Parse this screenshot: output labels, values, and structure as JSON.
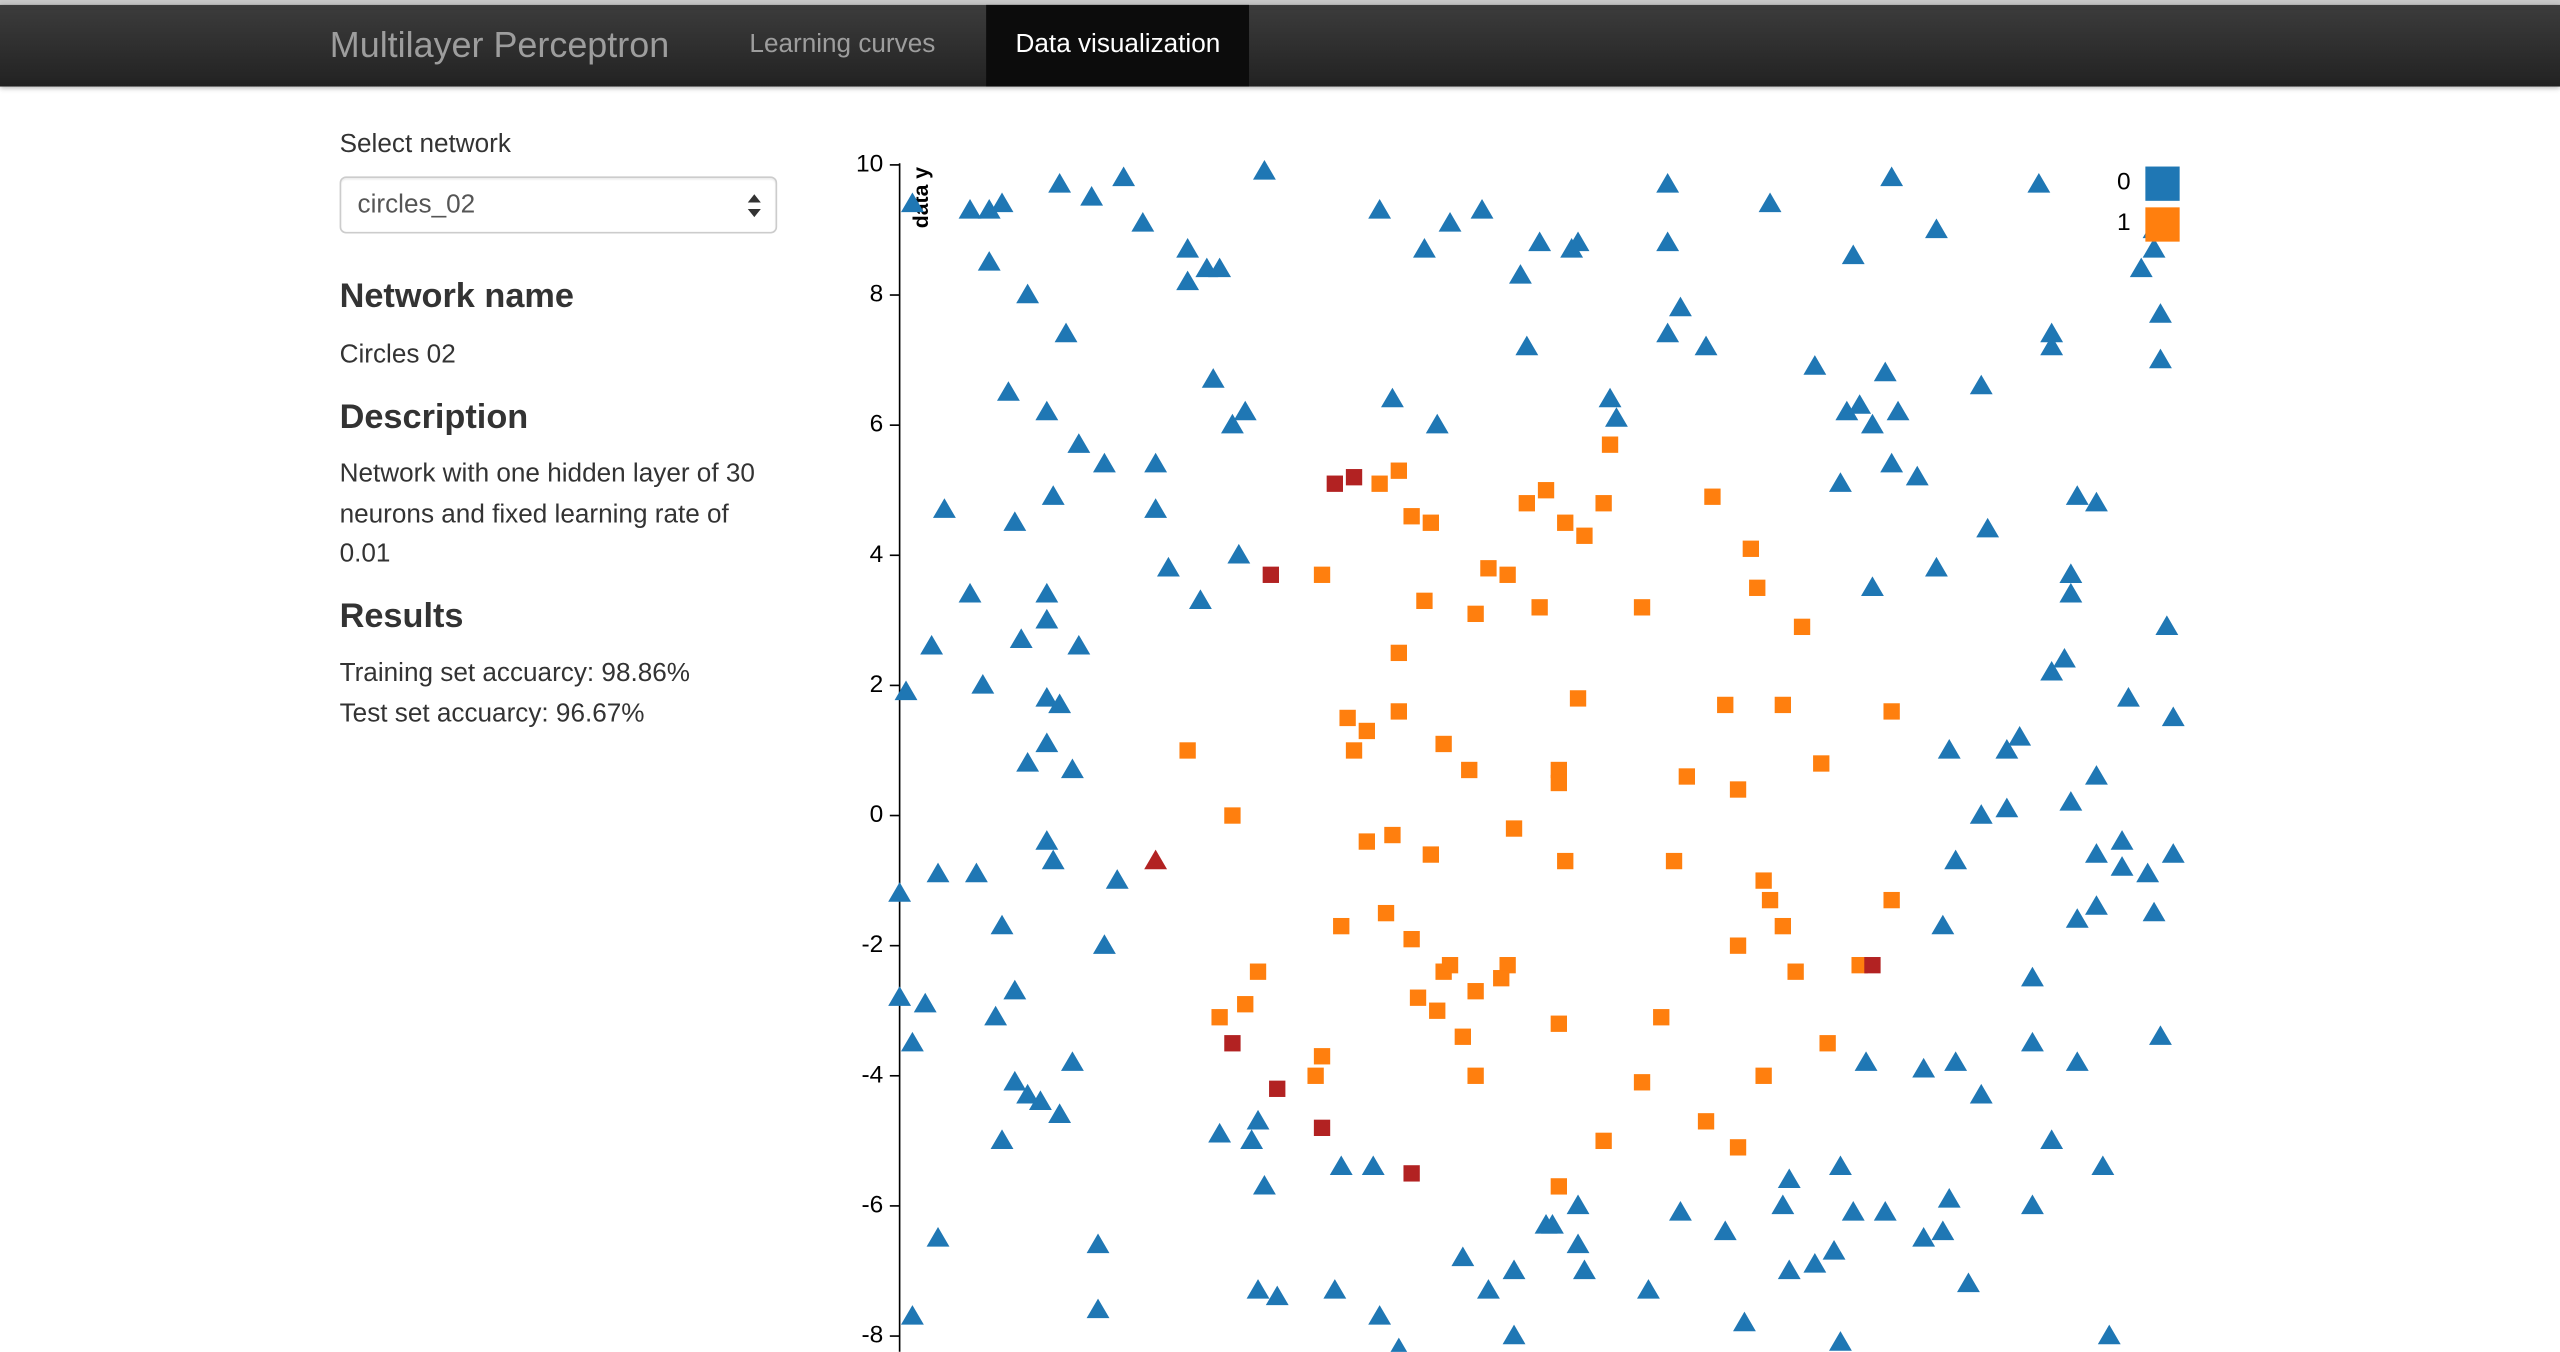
{
  "nav": {
    "brand": "Multilayer Perceptron",
    "links": [
      "Learning curves",
      "Data visualization"
    ]
  },
  "sidebar": {
    "select_label": "Select network",
    "select_value": "circles_02",
    "network_heading": "Network name",
    "network_name": "Circles 02",
    "description_heading": "Description",
    "description": "Network with one hidden layer of 30 neurons and fixed learning rate of 0.01",
    "results_heading": "Results",
    "results": [
      "Training set accuarcy: 98.86%",
      "Test set accuarcy: 96.67%"
    ]
  },
  "chart_data": {
    "type": "scatter",
    "y_label": "data y",
    "xlim": [
      -10,
      10
    ],
    "ylim": [
      -10,
      10
    ],
    "yticks": [
      10,
      8,
      6,
      4,
      2,
      0,
      -2,
      -4,
      -6,
      -8
    ],
    "legend": "top-right",
    "series": [
      {
        "name": "0",
        "color": "#1f77b4",
        "marker": "triangle",
        "x": [
          -9.8,
          -8.9,
          -8.6,
          -8.4,
          -7.5,
          -7.0,
          -6.5,
          -6.2,
          -4.3,
          -2.5,
          -1.4,
          -0.9,
          -1.8,
          2.0,
          3.6,
          5.5,
          6.2,
          7.8,
          4.9,
          2.0,
          -8.6,
          -8.0,
          -5.5,
          -5.5,
          -5.2,
          -5.0,
          0.0,
          0.5,
          0.6,
          -0.3,
          2.2,
          2.0,
          2.6,
          -0.2,
          -7.4,
          4.3,
          5.4,
          6.9,
          8.0,
          8.0,
          9.7,
          9.7,
          9.4,
          9.6,
          9.6,
          -8.3,
          -7.7,
          -5.1,
          -4.6,
          -4.8,
          -2.3,
          -1.6,
          1.1,
          1.2,
          4.8,
          5.0,
          5.2,
          5.6,
          -7.2,
          -6.8,
          -6.0,
          5.5,
          5.9,
          4.7,
          8.4,
          8.7,
          -9.3,
          -8.2,
          -7.6,
          -6.0,
          7.0,
          -5.8,
          -5.3,
          -4.7,
          6.2,
          5.2,
          8.3,
          8.3,
          9.8,
          -8.9,
          -7.7,
          -7.7,
          -8.1,
          -9.5,
          -7.2,
          -8.7,
          -9.9,
          -7.7,
          -7.5,
          8.2,
          8.0,
          9.2,
          9.9,
          7.5,
          7.3,
          6.4,
          -7.7,
          -8.0,
          -7.3,
          8.7,
          7.3,
          6.9,
          8.3,
          -7.7,
          -7.6,
          6.5,
          8.7,
          9.1,
          9.1,
          9.5,
          9.9,
          -9.4,
          -8.8,
          -10.0,
          -6.6,
          -8.4,
          -6.8,
          6.3,
          8.7,
          8.4,
          9.6,
          -10.0,
          -9.6,
          -8.2,
          -8.5,
          -9.8,
          7.7,
          9.7,
          7.7,
          5.1,
          6.0,
          6.5,
          8.4,
          6.9,
          -7.3,
          -8.2,
          -8.0,
          -7.8,
          -7.5,
          -8.4,
          -5.0,
          -4.5,
          -4.4,
          -4.3,
          -3.1,
          -2.6,
          -9.4,
          -6.9,
          -6.9,
          -9.8,
          -4.4,
          -4.1,
          -3.2,
          -2.5,
          -2.2,
          -1.2,
          -0.8,
          -0.4,
          -0.4,
          0.1,
          0.2,
          0.6,
          0.6,
          0.7,
          1.7,
          2.2,
          2.9,
          3.2,
          3.9,
          3.8,
          3.9,
          4.3,
          4.6,
          4.7,
          4.9,
          5.4,
          4.7,
          6.0,
          6.3,
          6.4,
          6.7,
          7.7,
          8.0,
          8.8,
          8.9
        ],
        "values": [
          9.4,
          9.3,
          9.3,
          9.4,
          9.7,
          9.5,
          9.8,
          9.1,
          9.9,
          9.3,
          9.1,
          9.3,
          8.7,
          9.7,
          9.4,
          9.8,
          9.0,
          9.7,
          8.6,
          8.8,
          8.5,
          8.0,
          8.7,
          8.2,
          8.4,
          8.4,
          8.8,
          8.7,
          8.8,
          8.3,
          7.8,
          7.4,
          7.2,
          7.2,
          7.4,
          6.9,
          6.8,
          6.6,
          7.4,
          7.2,
          7.0,
          7.7,
          8.4,
          8.7,
          9.0,
          6.5,
          6.2,
          6.7,
          6.2,
          6.0,
          6.4,
          6.0,
          6.4,
          6.1,
          6.2,
          6.3,
          6.0,
          6.2,
          5.7,
          5.4,
          5.4,
          5.4,
          5.2,
          5.1,
          4.9,
          4.8,
          4.7,
          4.5,
          4.9,
          4.7,
          4.4,
          3.8,
          3.3,
          4.0,
          3.8,
          3.5,
          3.7,
          3.4,
          2.9,
          3.4,
          3.4,
          3.0,
          2.7,
          2.6,
          2.6,
          2.0,
          1.9,
          1.8,
          1.7,
          2.4,
          2.2,
          1.8,
          1.5,
          1.2,
          1.0,
          1.0,
          1.1,
          0.8,
          0.7,
          0.6,
          0.1,
          0.0,
          0.2,
          -0.4,
          -0.7,
          -0.7,
          -0.6,
          -0.4,
          -0.8,
          -0.9,
          -0.6,
          -0.9,
          -0.9,
          -1.2,
          -1.0,
          -1.7,
          -2.0,
          -1.7,
          -1.4,
          -1.6,
          -1.5,
          -2.8,
          -2.9,
          -2.7,
          -3.1,
          -3.5,
          -2.5,
          -3.4,
          -3.5,
          -3.8,
          -3.9,
          -3.8,
          -3.8,
          -4.3,
          -3.8,
          -4.1,
          -4.3,
          -4.4,
          -4.6,
          -5.0,
          -4.9,
          -5.0,
          -4.7,
          -5.7,
          -5.4,
          -5.4,
          -6.5,
          -6.6,
          -7.6,
          -7.7,
          -7.3,
          -7.4,
          -7.3,
          -7.7,
          -8.2,
          -6.8,
          -7.3,
          -7.0,
          -8.0,
          -6.3,
          -6.3,
          -6.6,
          -6.0,
          -7.0,
          -7.3,
          -6.1,
          -6.4,
          -7.8,
          -5.6,
          -6.0,
          -7.0,
          -6.9,
          -6.7,
          -5.4,
          -6.1,
          -6.1,
          -8.1,
          -6.5,
          -6.4,
          -5.9,
          -7.2,
          -6.0,
          -5.0,
          -5.4,
          -8.0
        ]
      },
      {
        "name": "1",
        "color": "#ff7f0e",
        "marker": "square",
        "x": [
          -2.5,
          -2.2,
          -2.0,
          -1.7,
          0.1,
          -0.2,
          1.0,
          1.1,
          0.4,
          0.7,
          2.7,
          3.3,
          3.4,
          4.1,
          -3.4,
          -1.8,
          -1.0,
          -0.8,
          -0.5,
          0.0,
          1.6,
          -2.2,
          -3.0,
          -2.7,
          -2.9,
          -2.2,
          -1.5,
          -1.1,
          0.6,
          0.3,
          0.3,
          2.3,
          2.9,
          3.8,
          3.1,
          4.4,
          5.5,
          -5.5,
          -4.8,
          -0.4,
          -2.3,
          -2.7,
          -1.7,
          0.4,
          2.1,
          3.5,
          3.6,
          3.8,
          3.1,
          5.5,
          -3.1,
          -2.4,
          -2.0,
          -1.4,
          -1.5,
          -0.5,
          -0.6,
          -1.9,
          -1.0,
          -1.6,
          -1.2,
          -1.0,
          -4.4,
          -4.6,
          -5.0,
          -3.4,
          -3.5,
          0.3,
          1.9,
          4.0,
          5.0,
          4.5,
          3.5,
          1.6,
          2.6,
          3.1,
          1.0,
          0.3
        ],
        "values": [
          5.1,
          5.3,
          4.6,
          4.5,
          5.0,
          4.8,
          4.8,
          5.7,
          4.5,
          4.3,
          4.9,
          4.1,
          3.5,
          2.9,
          3.7,
          3.3,
          3.1,
          3.8,
          3.7,
          3.2,
          3.2,
          2.5,
          1.5,
          1.3,
          1.0,
          1.6,
          1.1,
          0.7,
          1.8,
          0.7,
          0.5,
          0.6,
          1.7,
          1.7,
          0.4,
          0.8,
          1.6,
          1.0,
          0.0,
          -0.2,
          -0.3,
          -0.4,
          -0.6,
          -0.7,
          -0.7,
          -1.0,
          -1.3,
          -1.7,
          -2.0,
          -1.3,
          -1.7,
          -1.5,
          -1.9,
          -2.3,
          -2.4,
          -2.3,
          -2.5,
          -2.8,
          -2.7,
          -3.0,
          -3.4,
          -4.0,
          -2.4,
          -2.9,
          -3.1,
          -3.7,
          -4.0,
          -3.2,
          -3.1,
          -2.4,
          -2.3,
          -3.5,
          -4.0,
          -4.1,
          -4.7,
          -5.1,
          -5.0,
          -5.7
        ]
      },
      {
        "color": "#b22222",
        "marker": "triangle",
        "x": [
          -6.0
        ],
        "values": [
          -0.7
        ]
      },
      {
        "color": "#b22222",
        "marker": "square",
        "x": [
          -3.2,
          -2.9,
          -4.2,
          -4.8,
          -4.1,
          -3.4,
          -2.0,
          5.2
        ],
        "values": [
          5.1,
          5.2,
          3.7,
          -3.5,
          -4.2,
          -4.8,
          -5.5,
          -2.3
        ]
      }
    ]
  }
}
